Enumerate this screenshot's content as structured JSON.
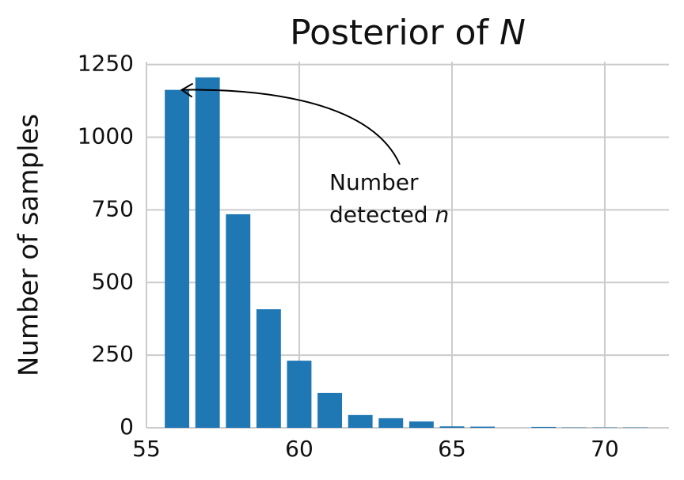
{
  "chart_data": {
    "type": "bar",
    "title": "Posterior of",
    "title_symbol": "N",
    "y_label": "Number of samples",
    "x": [
      56,
      57,
      58,
      59,
      60,
      61,
      62,
      63,
      64,
      65,
      66,
      67,
      68,
      69,
      70,
      71
    ],
    "values": [
      1163,
      1206,
      735,
      408,
      231,
      120,
      44,
      33,
      22,
      5,
      4,
      0,
      3,
      1,
      1,
      1
    ],
    "color": "#1f77b4",
    "xlim": [
      55,
      72.1
    ],
    "ylim": [
      0,
      1260
    ],
    "xticks": [
      55,
      60,
      65,
      70
    ],
    "yticks": [
      0,
      250,
      500,
      750,
      1000,
      1250
    ],
    "grid": true,
    "annotation": {
      "line1": "Number",
      "line2": "detected",
      "symbol": "n"
    }
  }
}
